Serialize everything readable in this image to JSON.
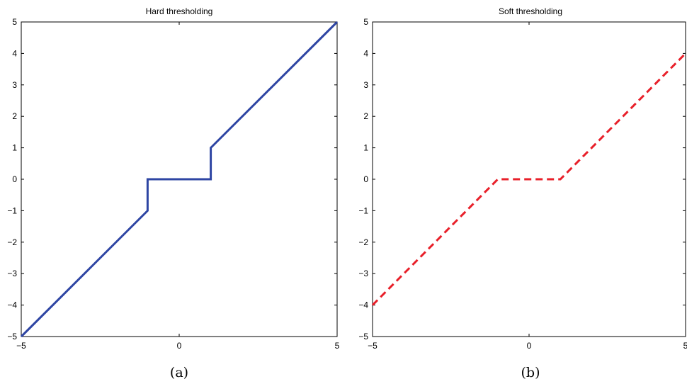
{
  "chart_data": [
    {
      "type": "line",
      "title": "Hard thresholding",
      "caption": "(a)",
      "xlim": [
        -5,
        5
      ],
      "ylim": [
        -5,
        5
      ],
      "xticks": [
        -5,
        0,
        5
      ],
      "yticks": [
        -5,
        -4,
        -3,
        -2,
        -1,
        0,
        1,
        2,
        3,
        4,
        5
      ],
      "grid": false,
      "series": [
        {
          "color": "#2e45a3",
          "dash": "solid",
          "x": [
            -5,
            -1,
            -1,
            1,
            1,
            5
          ],
          "y": [
            -5,
            -1,
            0,
            0,
            1,
            5
          ]
        }
      ]
    },
    {
      "type": "line",
      "title": "Soft thresholding",
      "caption": "(b)",
      "xlim": [
        -5,
        5
      ],
      "ylim": [
        -5,
        5
      ],
      "xticks": [
        -5,
        0,
        5
      ],
      "yticks": [
        -5,
        -4,
        -3,
        -2,
        -1,
        0,
        1,
        2,
        3,
        4,
        5
      ],
      "grid": false,
      "series": [
        {
          "color": "#e8202a",
          "dash": "dashed",
          "x": [
            -5,
            -1,
            1,
            5
          ],
          "y": [
            -4,
            0,
            0,
            4
          ]
        }
      ]
    }
  ]
}
